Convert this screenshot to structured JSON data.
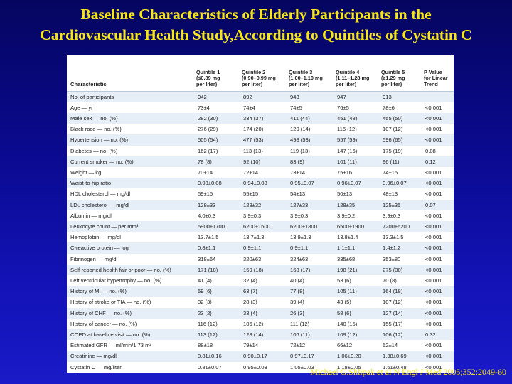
{
  "slide": {
    "title_line1": "Baseline Characteristics of Elderly Participants in the",
    "title_line2": "Cardiovascular Health Study,According to Quintiles of Cystatin C",
    "citation": "Michael G.Shlipak et al N Engl J Med 2005;352:2049-60"
  },
  "table": {
    "header": {
      "characteristic": "Characteristic",
      "q1": [
        "Quintile 1",
        "(≤0.89 mg",
        "per liter)"
      ],
      "q2": [
        "Quintile 2",
        "(0.90–0.99 mg",
        "per liter)"
      ],
      "q3": [
        "Quintile 3",
        "(1.00–1.10 mg",
        "per liter)"
      ],
      "q4": [
        "Quintile 4",
        "(1.11–1.28 mg",
        "per liter)"
      ],
      "q5": [
        "Quintile 5",
        "(≥1.29 mg",
        "per liter)"
      ],
      "p": [
        "P Value",
        "for Linear",
        "Trend"
      ]
    },
    "rows": [
      [
        "No. of participants",
        "942",
        "892",
        "943",
        "947",
        "913",
        ""
      ],
      [
        "Age — yr",
        "73±4",
        "74±4",
        "74±5",
        "76±5",
        "78±6",
        "<0.001"
      ],
      [
        "Male sex — no. (%)",
        "282 (30)",
        "334 (37)",
        "411 (44)",
        "451 (48)",
        "455 (50)",
        "<0.001"
      ],
      [
        "Black race — no. (%)",
        "276 (29)",
        "174 (20)",
        "129 (14)",
        "116 (12)",
        "107 (12)",
        "<0.001"
      ],
      [
        "Hypertension — no. (%)",
        "505 (54)",
        "477 (53)",
        "498 (53)",
        "557 (59)",
        "596 (65)",
        "<0.001"
      ],
      [
        "Diabetes — no. (%)",
        "162 (17)",
        "113 (13)",
        "119 (13)",
        "147 (16)",
        "175 (19)",
        "0.08"
      ],
      [
        "Current smoker — no. (%)",
        "78 (8)",
        "92 (10)",
        "83 (9)",
        "101 (11)",
        "96 (11)",
        "0.12"
      ],
      [
        "Weight — kg",
        "70±14",
        "72±14",
        "73±14",
        "75±16",
        "74±15",
        "<0.001"
      ],
      [
        "Waist-to-hip ratio",
        "0.93±0.08",
        "0.94±0.08",
        "0.95±0.07",
        "0.96±0.07",
        "0.96±0.07",
        "<0.001"
      ],
      [
        "HDL cholesterol — mg/dl",
        "59±15",
        "55±15",
        "54±13",
        "50±13",
        "48±13",
        "<0.001"
      ],
      [
        "LDL cholesterol — mg/dl",
        "128±33",
        "128±32",
        "127±33",
        "128±35",
        "125±35",
        "0.07"
      ],
      [
        "Albumin — mg/dl",
        "4.0±0.3",
        "3.9±0.3",
        "3.9±0.3",
        "3.9±0.2",
        "3.9±0.3",
        "<0.001"
      ],
      [
        "Leukocyte count — per mm³",
        "5900±1700",
        "6200±1600",
        "6200±1800",
        "6500±1900",
        "7200±6200",
        "<0.001"
      ],
      [
        "Hemoglobin — mg/dl",
        "13.7±1.5",
        "13.7±1.3",
        "13.9±1.3",
        "13.8±1.4",
        "13.3±1.5",
        "<0.001"
      ],
      [
        "C-reactive protein — log",
        "0.8±1.1",
        "0.9±1.1",
        "0.9±1.1",
        "1.1±1.1",
        "1.4±1.2",
        "<0.001"
      ],
      [
        "Fibrinogen — mg/dl",
        "318±64",
        "320±63",
        "324±63",
        "335±68",
        "353±80",
        "<0.001"
      ],
      [
        "Self-reported health fair or poor — no. (%)",
        "171 (18)",
        "159 (18)",
        "163 (17)",
        "198 (21)",
        "275 (30)",
        "<0.001"
      ],
      [
        "Left ventricular hypertrophy — no. (%)",
        "41 (4)",
        "32 (4)",
        "40 (4)",
        "53 (6)",
        "70 (8)",
        "<0.001"
      ],
      [
        "History of MI — no. (%)",
        "59 (6)",
        "63 (7)",
        "77 (8)",
        "105 (11)",
        "164 (18)",
        "<0.001"
      ],
      [
        "History of stroke or TIA — no. (%)",
        "32 (3)",
        "28 (3)",
        "39 (4)",
        "43 (5)",
        "107 (12)",
        "<0.001"
      ],
      [
        "History of CHF — no. (%)",
        "23 (2)",
        "33 (4)",
        "26 (3)",
        "58 (6)",
        "127 (14)",
        "<0.001"
      ],
      [
        "History of cancer — no. (%)",
        "116 (12)",
        "106 (12)",
        "111 (12)",
        "140 (15)",
        "155 (17)",
        "<0.001"
      ],
      [
        "COPD at baseline visit — no. (%)",
        "113 (12)",
        "128 (14)",
        "106 (11)",
        "109 (12)",
        "106 (12)",
        "0.32"
      ],
      [
        "Estimated GFR — ml/min/1.73 m²",
        "88±18",
        "79±14",
        "72±12",
        "66±12",
        "52±14",
        "<0.001"
      ],
      [
        "Creatinine — mg/dl",
        "0.81±0.16",
        "0.90±0.17",
        "0.97±0.17",
        "1.06±0.20",
        "1.38±0.69",
        "<0.001"
      ],
      [
        "Cystatin C — mg/liter",
        "0.81±0.07",
        "0.95±0.03",
        "1.05±0.03",
        "1.18±0.05",
        "1.61±0.48",
        "<0.001"
      ]
    ]
  }
}
